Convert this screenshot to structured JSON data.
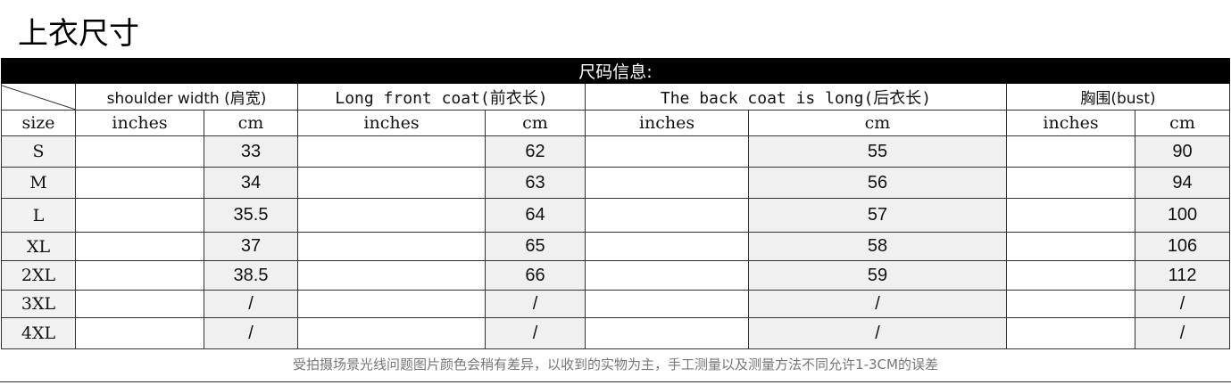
{
  "title": "上衣尺寸",
  "table": {
    "banner": "尺码信息:",
    "groups": [
      "shoulder width (肩宽)",
      "Long front coat(前衣长)",
      "The back coat is long(后衣长)",
      "胸围(bust)"
    ],
    "size_label": "size",
    "unit_inches": "inches",
    "unit_cm": "cm",
    "rows": [
      {
        "size": "S",
        "shoulder_cm": "33",
        "front_cm": "62",
        "back_cm": "55",
        "bust_cm": "90"
      },
      {
        "size": "M",
        "shoulder_cm": "34",
        "front_cm": "63",
        "back_cm": "56",
        "bust_cm": "94"
      },
      {
        "size": "L",
        "shoulder_cm": "35.5",
        "front_cm": "64",
        "back_cm": "57",
        "bust_cm": "100"
      },
      {
        "size": "XL",
        "shoulder_cm": "37",
        "front_cm": "65",
        "back_cm": "58",
        "bust_cm": "106"
      },
      {
        "size": "2XL",
        "shoulder_cm": "38.5",
        "front_cm": "66",
        "back_cm": "59",
        "bust_cm": "112"
      },
      {
        "size": "3XL",
        "shoulder_cm": "/",
        "front_cm": "/",
        "back_cm": "/",
        "bust_cm": "/"
      },
      {
        "size": "4XL",
        "shoulder_cm": "/",
        "front_cm": "/",
        "back_cm": "/",
        "bust_cm": "/"
      }
    ]
  },
  "note": "受拍摄场景光线问题图片颜色会稍有差异，以收到的实物为主，手工测量以及测量方法不同允许1-3CM的误差"
}
